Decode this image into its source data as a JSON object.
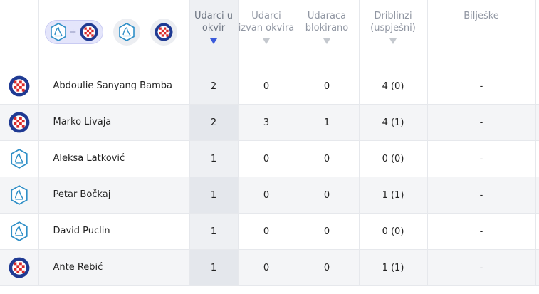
{
  "columns": {
    "shots_on_target": "Udarci u okvir",
    "shots_off_target": "Udarci izvan okvira",
    "shots_blocked": "Udaraca blokirano",
    "dribbles": "Driblinzi (uspješni)",
    "notes": "Bilješke"
  },
  "team_filters": {
    "plus": "+",
    "items": [
      "both-teams",
      "osijek",
      "hajduk"
    ],
    "active": "both-teams"
  },
  "colors": {
    "hajduk_blue": "#1f3a93",
    "hajduk_red": "#d92a2a",
    "osijek_blue": "#2f8fc7",
    "sort_arrow": "#3b5bdb"
  },
  "rows": [
    {
      "team": "hajduk",
      "player": "Abdoulie Sanyang Bamba",
      "on_target": "2",
      "off_target": "0",
      "blocked": "0",
      "dribbles": "4 (0)",
      "notes": "-"
    },
    {
      "team": "hajduk",
      "player": "Marko Livaja",
      "on_target": "2",
      "off_target": "3",
      "blocked": "1",
      "dribbles": "4 (1)",
      "notes": "-"
    },
    {
      "team": "osijek",
      "player": "Aleksa Latković",
      "on_target": "1",
      "off_target": "0",
      "blocked": "0",
      "dribbles": "0 (0)",
      "notes": "-"
    },
    {
      "team": "osijek",
      "player": "Petar Bočkaj",
      "on_target": "1",
      "off_target": "0",
      "blocked": "0",
      "dribbles": "1 (1)",
      "notes": "-"
    },
    {
      "team": "osijek",
      "player": "David Puclin",
      "on_target": "1",
      "off_target": "0",
      "blocked": "0",
      "dribbles": "0 (0)",
      "notes": "-"
    },
    {
      "team": "hajduk",
      "player": "Ante Rebić",
      "on_target": "1",
      "off_target": "0",
      "blocked": "0",
      "dribbles": "1 (1)",
      "notes": "-"
    }
  ]
}
